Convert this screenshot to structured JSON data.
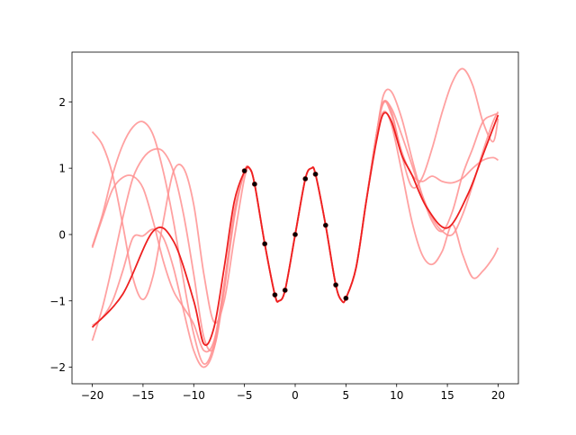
{
  "chart_data": {
    "type": "line",
    "title": "",
    "xlabel": "",
    "ylabel": "",
    "xlim": [
      -22,
      22
    ],
    "ylim": [
      -2.25,
      2.75
    ],
    "xticks": [
      -20,
      -15,
      -10,
      -5,
      0,
      5,
      10,
      15,
      20
    ],
    "yticks": [
      -2,
      -1,
      0,
      1,
      2
    ],
    "xtick_labels": [
      "−20",
      "−15",
      "−10",
      "−5",
      "0",
      "5",
      "10",
      "15",
      "20"
    ],
    "ytick_labels": [
      "−2",
      "−1",
      "0",
      "1",
      "2"
    ],
    "grid": false,
    "legend": "none",
    "colors": {
      "sample": "#ff9090",
      "mean": "#ee2020",
      "points": "#000000",
      "axes": "#000000"
    },
    "observations": {
      "x": [
        -5,
        -4,
        -3,
        -2,
        -1,
        0,
        1,
        2,
        3,
        4,
        5
      ],
      "y": [
        0.96,
        0.76,
        -0.14,
        -0.91,
        -0.84,
        0.0,
        0.84,
        0.91,
        0.14,
        -0.76,
        -0.96
      ]
    },
    "mean_curve": {
      "x": [
        -20,
        -17,
        -14,
        -12,
        -10,
        -9,
        -8,
        -7,
        -6,
        -5,
        -4.5,
        -4,
        -3,
        -2,
        -1.6,
        -1,
        0,
        1,
        1.6,
        2,
        3,
        4,
        4.6,
        5,
        6,
        7,
        8,
        8.7,
        9.5,
        10.5,
        11.5,
        13,
        15,
        17,
        18.5,
        20
      ],
      "y": [
        -1.4,
        -0.9,
        0.05,
        -0.1,
        -1.0,
        -1.65,
        -1.4,
        -0.5,
        0.5,
        0.95,
        1.0,
        0.76,
        -0.14,
        -0.91,
        -1.0,
        -0.84,
        0.0,
        0.84,
        1.0,
        0.91,
        0.14,
        -0.76,
        -1.0,
        -0.96,
        -0.5,
        0.5,
        1.4,
        1.82,
        1.7,
        1.2,
        0.9,
        0.4,
        0.1,
        0.6,
        1.2,
        1.8
      ]
    },
    "series": [
      {
        "x": [
          -20,
          -19,
          -18,
          -17,
          -16,
          -15,
          -14,
          -13,
          -12,
          -11,
          -10,
          -9,
          -8,
          -7,
          -6,
          -5,
          -4.5,
          -4,
          -3,
          -2,
          -1.6,
          -1,
          0,
          1,
          1.6,
          2,
          3,
          4,
          4.6,
          5,
          6,
          7,
          8,
          8.7,
          9.5,
          10.5,
          11.5,
          12.5,
          13.5,
          14.5,
          15.5,
          16.5,
          17.5,
          18.5,
          19.5,
          20
        ],
        "y": [
          -0.18,
          0.3,
          0.9,
          1.35,
          1.62,
          1.7,
          1.5,
          0.95,
          0.2,
          -0.7,
          -1.5,
          -1.95,
          -1.65,
          -0.75,
          0.3,
          0.95,
          1.0,
          0.76,
          -0.14,
          -0.91,
          -1.0,
          -0.84,
          0.0,
          0.84,
          1.0,
          0.91,
          0.14,
          -0.76,
          -1.0,
          -0.96,
          -0.5,
          0.5,
          1.5,
          1.98,
          1.9,
          1.5,
          1.05,
          0.6,
          0.25,
          0.05,
          0.0,
          0.3,
          0.75,
          1.25,
          1.7,
          1.85
        ]
      },
      {
        "x": [
          -20,
          -19,
          -18,
          -17,
          -16,
          -15,
          -14,
          -13,
          -12,
          -11,
          -10,
          -9,
          -8,
          -7,
          -6,
          -5,
          -4.5,
          -4,
          -3,
          -2,
          -1.6,
          -1,
          0,
          1,
          1.6,
          2,
          3,
          4,
          4.6,
          5,
          6,
          7,
          8,
          8.7,
          9.5,
          10.5,
          11.5,
          12.5,
          13.5,
          14.5,
          15.5,
          16.5,
          17.5,
          18.5,
          19.5,
          20
        ],
        "y": [
          1.55,
          1.35,
          0.9,
          0.15,
          -0.65,
          -0.98,
          -0.62,
          0.2,
          0.95,
          1.0,
          0.45,
          -0.6,
          -1.32,
          -1.0,
          -0.05,
          0.85,
          1.0,
          0.76,
          -0.14,
          -0.91,
          -1.0,
          -0.84,
          0.0,
          0.84,
          1.0,
          0.91,
          0.14,
          -0.76,
          -1.0,
          -0.96,
          -0.5,
          0.5,
          1.5,
          2.0,
          1.85,
          1.2,
          0.72,
          0.85,
          1.3,
          1.85,
          2.3,
          2.5,
          2.25,
          1.7,
          1.4,
          1.75
        ]
      },
      {
        "x": [
          -20,
          -19,
          -18,
          -17,
          -16,
          -15,
          -14,
          -13,
          -12,
          -11,
          -10,
          -9,
          -8,
          -7,
          -6,
          -5,
          -4.5,
          -4,
          -3,
          -2,
          -1.6,
          -1,
          0,
          1,
          1.6,
          2,
          3,
          4,
          4.6,
          5,
          6,
          7,
          8,
          8.7,
          9.5,
          10.5,
          11.5,
          12.5,
          13.5,
          14.5,
          15.5,
          16.5,
          17.5,
          18.5,
          19.5,
          20
        ],
        "y": [
          -0.2,
          0.25,
          0.68,
          0.86,
          0.88,
          0.7,
          0.2,
          -0.4,
          -0.85,
          -1.1,
          -1.35,
          -1.75,
          -1.6,
          -0.75,
          0.35,
          0.95,
          1.0,
          0.76,
          -0.14,
          -0.91,
          -1.0,
          -0.84,
          0.0,
          0.84,
          1.0,
          0.91,
          0.14,
          -0.76,
          -1.0,
          -0.96,
          -0.5,
          0.5,
          1.5,
          2.1,
          2.15,
          1.75,
          1.15,
          0.6,
          0.2,
          0.05,
          0.35,
          0.9,
          1.3,
          1.7,
          1.8,
          1.82
        ]
      },
      {
        "x": [
          -20,
          -19,
          -18,
          -17,
          -16,
          -15,
          -14,
          -13,
          -12,
          -11,
          -10,
          -9,
          -8,
          -7,
          -6,
          -5,
          -4.5,
          -4,
          -3,
          -2,
          -1.6,
          -1,
          0,
          1,
          1.6,
          2,
          3,
          4,
          4.6,
          5,
          6,
          7,
          8,
          8.7,
          9.5,
          10.5,
          11.5,
          12.5,
          13.5,
          14.5,
          15.5,
          16.5,
          17.5,
          18.5,
          19.5,
          20
        ],
        "y": [
          -1.6,
          -1.1,
          -0.45,
          0.25,
          0.85,
          1.15,
          1.28,
          1.25,
          0.95,
          0.3,
          -0.6,
          -1.55,
          -1.7,
          -0.85,
          0.25,
          0.95,
          1.0,
          0.76,
          -0.14,
          -0.91,
          -1.0,
          -0.84,
          0.0,
          0.84,
          1.0,
          0.91,
          0.14,
          -0.76,
          -1.0,
          -0.96,
          -0.5,
          0.5,
          1.5,
          2.0,
          1.8,
          1.25,
          0.9,
          0.8,
          0.88,
          0.8,
          0.78,
          0.85,
          1.0,
          1.12,
          1.16,
          1.12
        ]
      },
      {
        "x": [
          -20,
          -19,
          -18,
          -17,
          -16,
          -15,
          -14,
          -13,
          -12,
          -11,
          -10,
          -9,
          -8,
          -7,
          -6,
          -5,
          -4.5,
          -4,
          -3,
          -2,
          -1.6,
          -1,
          0,
          1,
          1.6,
          2,
          3,
          4,
          4.6,
          5,
          6,
          7,
          8,
          8.7,
          9.5,
          10.5,
          11.5,
          12.5,
          13.5,
          14.5,
          15.5,
          16.5,
          17.5,
          18.5,
          19.5,
          20
        ],
        "y": [
          -1.37,
          -1.25,
          -1.0,
          -0.55,
          -0.05,
          -0.02,
          0.08,
          -0.05,
          -0.5,
          -1.15,
          -1.75,
          -2.0,
          -1.72,
          -0.8,
          0.3,
          0.95,
          1.0,
          0.76,
          -0.14,
          -0.91,
          -1.0,
          -0.84,
          0.0,
          0.84,
          1.0,
          0.91,
          0.14,
          -0.76,
          -1.0,
          -0.96,
          -0.5,
          0.5,
          1.45,
          1.85,
          1.65,
          0.95,
          0.2,
          -0.3,
          -0.45,
          -0.25,
          0.15,
          -0.3,
          -0.65,
          -0.55,
          -0.35,
          -0.2
        ]
      }
    ]
  }
}
